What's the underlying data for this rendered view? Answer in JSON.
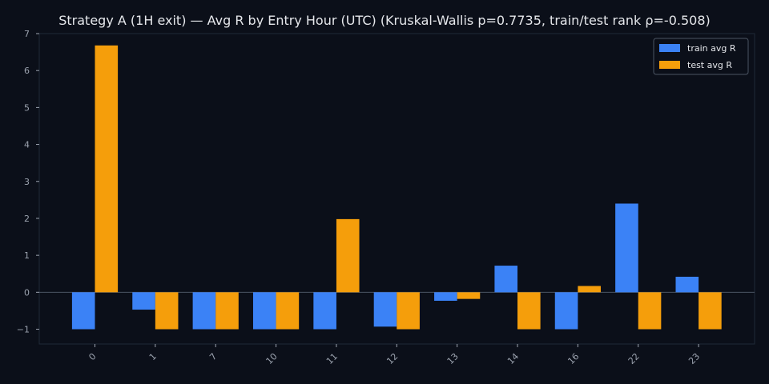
{
  "chart_data": {
    "type": "bar",
    "title": "Strategy A (1H exit) — Avg R by Entry Hour (UTC) (Kruskal-Wallis p=0.7735, train/test rank ρ=-0.508)",
    "xlabel": "",
    "ylabel": "",
    "categories": [
      "0",
      "1",
      "7",
      "10",
      "11",
      "12",
      "13",
      "14",
      "16",
      "22",
      "23"
    ],
    "series": [
      {
        "name": "train avg R",
        "color": "#3b82f6",
        "values": [
          -1.0,
          -0.47,
          -1.0,
          -1.0,
          -1.0,
          -0.93,
          -0.23,
          0.72,
          -1.0,
          2.4,
          0.42
        ]
      },
      {
        "name": "test avg R",
        "color": "#f59e0b",
        "values": [
          6.68,
          -1.0,
          -1.0,
          -1.0,
          1.98,
          -1.0,
          -0.18,
          -1.0,
          0.17,
          -1.0,
          -1.0
        ]
      }
    ],
    "ylim": [
      -1.4,
      7.0
    ],
    "yticks": [
      -1,
      0,
      1,
      2,
      3,
      4,
      5,
      6,
      7
    ],
    "ytick_labels": [
      "−1",
      "0",
      "1",
      "2",
      "3",
      "4",
      "5",
      "6",
      "7"
    ],
    "grid": false,
    "legend_position": "top-right",
    "colors": {
      "background": "#0b0f19",
      "text": "#e5e7eb",
      "tick_text": "#9ca3af",
      "spine": "#1f2937",
      "zero_line": "#4b5563"
    }
  }
}
